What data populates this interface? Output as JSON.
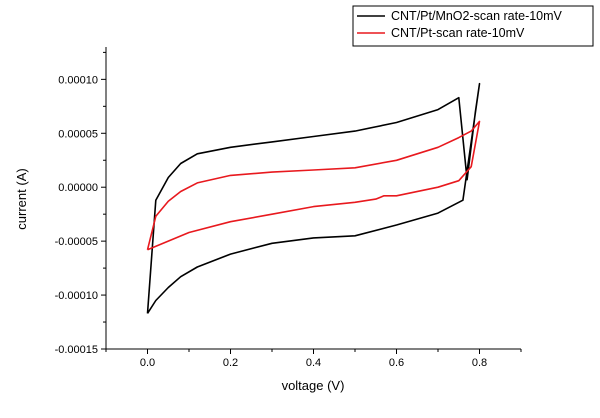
{
  "chart_data": {
    "type": "line",
    "xlabel": "voltage (V)",
    "ylabel": "current (A)",
    "xlim": [
      -0.1,
      0.9
    ],
    "ylim": [
      -0.00015,
      0.00013
    ],
    "xticks": [
      {
        "value": 0.0,
        "label": "0.0"
      },
      {
        "value": 0.2,
        "label": "0.2"
      },
      {
        "value": 0.4,
        "label": "0.4"
      },
      {
        "value": 0.6,
        "label": "0.6"
      },
      {
        "value": 0.8,
        "label": "0.8"
      }
    ],
    "yticks": [
      {
        "value": -0.00015,
        "label": "-0.00015"
      },
      {
        "value": -0.0001,
        "label": "-0.00010"
      },
      {
        "value": -5e-05,
        "label": "-0.00005"
      },
      {
        "value": 0.0,
        "label": "0.00000"
      },
      {
        "value": 5e-05,
        "label": "0.00005"
      },
      {
        "value": 0.0001,
        "label": "0.00010"
      }
    ],
    "grid": false,
    "legend_position": "top-right",
    "series": [
      {
        "name": "CNT/Pt/MnO2-scan rate-10mV",
        "color": "#000000",
        "x": [
          0.0,
          0.02,
          0.05,
          0.08,
          0.12,
          0.2,
          0.3,
          0.4,
          0.5,
          0.6,
          0.7,
          0.76,
          0.8,
          0.79,
          0.78,
          0.77,
          0.75,
          0.7,
          0.6,
          0.5,
          0.4,
          0.3,
          0.2,
          0.12,
          0.08,
          0.05,
          0.02,
          0.0
        ],
        "y": [
          -0.000117,
          -0.000105,
          -9.3e-05,
          -8.3e-05,
          -7.4e-05,
          -6.2e-05,
          -5.2e-05,
          -4.7e-05,
          -4.5e-05,
          -3.5e-05,
          -2.4e-05,
          -1.2e-05,
          9.6e-05,
          7e-05,
          3.8e-05,
          7e-06,
          8.3e-05,
          7.2e-05,
          6e-05,
          5.2e-05,
          4.7e-05,
          4.2e-05,
          3.7e-05,
          3.1e-05,
          2.2e-05,
          9e-06,
          -1.2e-05,
          -0.000117
        ]
      },
      {
        "name": "CNT/Pt-scan rate-10mV",
        "color": "#e8191e",
        "x": [
          0.0,
          0.1,
          0.2,
          0.3,
          0.4,
          0.5,
          0.55,
          0.57,
          0.6,
          0.7,
          0.75,
          0.78,
          0.8,
          0.78,
          0.75,
          0.7,
          0.6,
          0.5,
          0.4,
          0.3,
          0.2,
          0.12,
          0.08,
          0.05,
          0.02,
          0.0
        ],
        "y": [
          -5.8e-05,
          -4.2e-05,
          -3.2e-05,
          -2.5e-05,
          -1.8e-05,
          -1.4e-05,
          -1.1e-05,
          -8e-06,
          -8e-06,
          0.0,
          6e-06,
          1.9e-05,
          6.1e-05,
          5.2e-05,
          4.6e-05,
          3.7e-05,
          2.5e-05,
          1.8e-05,
          1.6e-05,
          1.4e-05,
          1.1e-05,
          4e-06,
          -4e-06,
          -1.3e-05,
          -2.7e-05,
          -5.8e-05
        ]
      }
    ]
  }
}
